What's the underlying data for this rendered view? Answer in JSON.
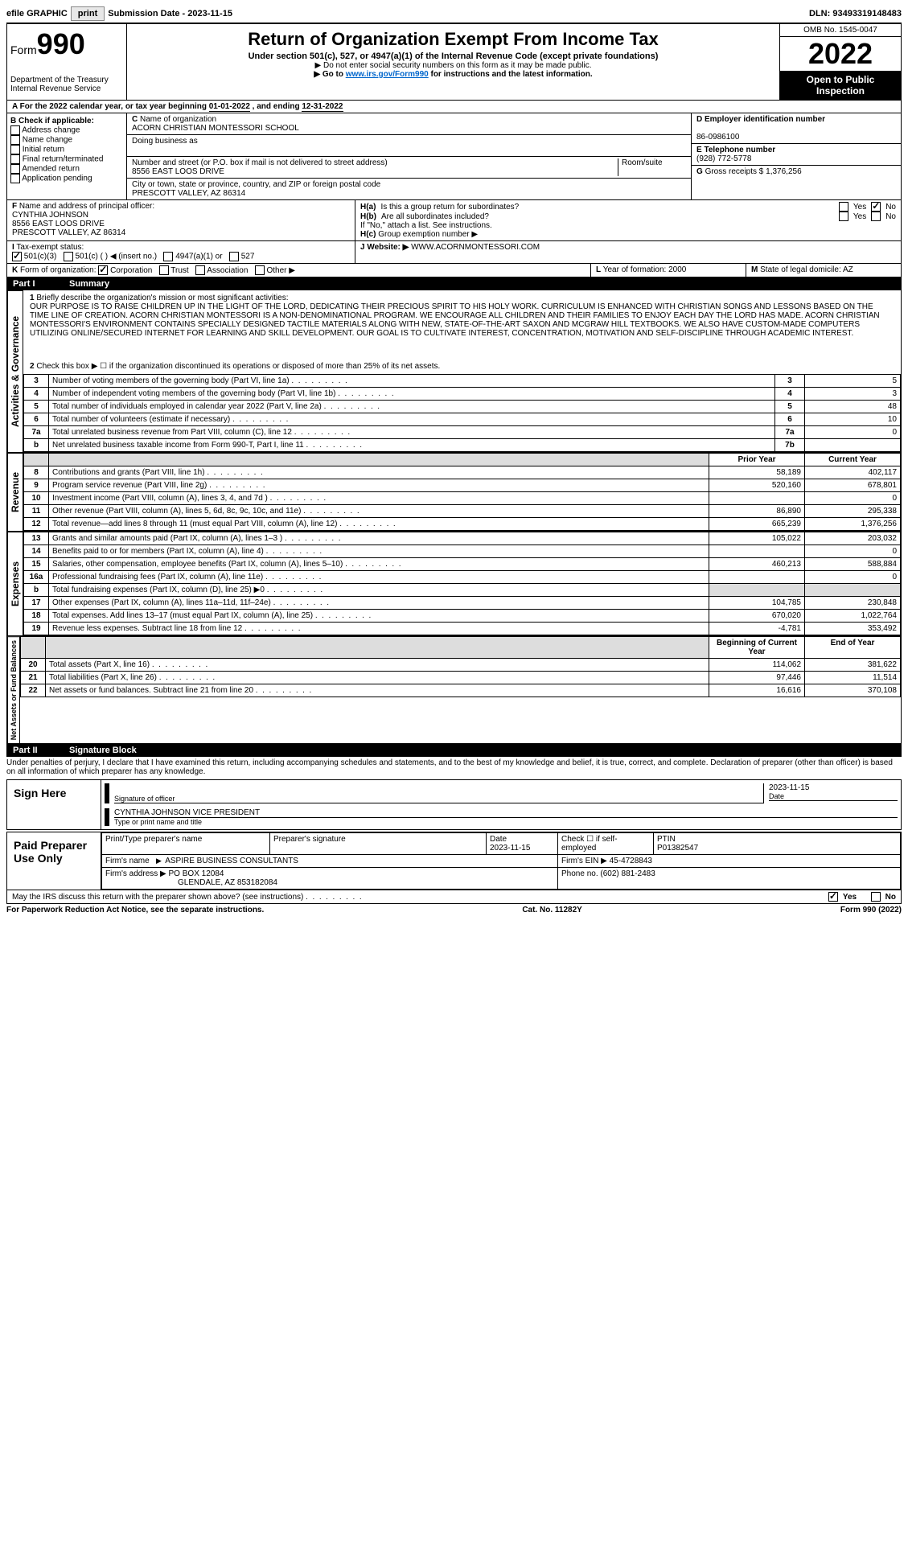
{
  "topbar": {
    "efile": "efile GRAPHIC",
    "print": "print",
    "sub_label": "Submission Date - ",
    "sub_date": "2023-11-15",
    "dln_label": "DLN: ",
    "dln": "93493319148483"
  },
  "header": {
    "form_label": "Form",
    "form_num": "990",
    "dept": "Department of the Treasury\nInternal Revenue Service",
    "title": "Return of Organization Exempt From Income Tax",
    "sub1": "Under section 501(c), 527, or 4947(a)(1) of the Internal Revenue Code (except private foundations)",
    "sub2": "▶ Do not enter social security numbers on this form as it may be made public.",
    "sub3_pre": "▶ Go to ",
    "sub3_link": "www.irs.gov/Form990",
    "sub3_post": " for instructions and the latest information.",
    "omb": "OMB No. 1545-0047",
    "year": "2022",
    "open1": "Open to Public",
    "open2": "Inspection"
  },
  "A": {
    "label": "A",
    "text_pre": "For the 2022 calendar year, or tax year beginning ",
    "begin": "01-01-2022",
    "mid": " , and ending ",
    "end": "12-31-2022"
  },
  "B": {
    "label": "B",
    "heading": "Check if applicable:",
    "opts": [
      "Address change",
      "Name change",
      "Initial return",
      "Final return/terminated",
      "Amended return",
      "Application pending"
    ]
  },
  "C": {
    "label": "C",
    "name_label": "Name of organization",
    "name": "ACORN CHRISTIAN MONTESSORI SCHOOL",
    "dba_label": "Doing business as",
    "dba": "",
    "street_label": "Number and street (or P.O. box if mail is not delivered to street address)",
    "room_label": "Room/suite",
    "street": "8556 EAST LOOS DRIVE",
    "city_label": "City or town, state or province, country, and ZIP or foreign postal code",
    "city": "PRESCOTT VALLEY, AZ  86314"
  },
  "D": {
    "label": "D Employer identification number",
    "val": "86-0986100"
  },
  "E": {
    "label": "E Telephone number",
    "val": "(928) 772-5778"
  },
  "G": {
    "label": "G",
    "text": "Gross receipts $",
    "val": "1,376,256"
  },
  "F": {
    "label": "F",
    "heading": "Name and address of principal officer:",
    "name": "CYNTHIA JOHNSON",
    "addr1": "8556 EAST LOOS DRIVE",
    "addr2": "PRESCOTT VALLEY, AZ  86314"
  },
  "H": {
    "a": "Is this a group return for subordinates?",
    "a_yes": "Yes",
    "a_no": "No",
    "b": "Are all subordinates included?",
    "b_yes": "Yes",
    "b_no": "No",
    "b_note": "If \"No,\" attach a list. See instructions.",
    "c": "Group exemption number ▶"
  },
  "I": {
    "label": "I",
    "heading": "Tax-exempt status:",
    "o1": "501(c)(3)",
    "o2": "501(c) (   ) ◀ (insert no.)",
    "o3": "4947(a)(1) or",
    "o4": "527"
  },
  "J": {
    "label": "J",
    "heading": "Website: ▶",
    "val": "WWW.ACORNMONTESSORI.COM"
  },
  "K": {
    "label": "K",
    "heading": "Form of organization:",
    "opts": [
      "Corporation",
      "Trust",
      "Association",
      "Other ▶"
    ]
  },
  "L": {
    "label": "L",
    "heading": "Year of formation:",
    "val": "2000"
  },
  "M": {
    "label": "M",
    "heading": "State of legal domicile:",
    "val": "AZ"
  },
  "part1": {
    "num": "Part I",
    "title": "Summary"
  },
  "mission": {
    "lineno": "1",
    "heading": "Briefly describe the organization's mission or most significant activities:",
    "text": "OUR PURPOSE IS TO RAISE CHILDREN UP IN THE LIGHT OF THE LORD, DEDICATING THEIR PRECIOUS SPIRIT TO HIS HOLY WORK. CURRICULUM IS ENHANCED WITH CHRISTIAN SONGS AND LESSONS BASED ON THE TIME LINE OF CREATION. ACORN CHRISTIAN MONTESSORI IS A NON-DENOMINATIONAL PROGRAM. WE ENCOURAGE ALL CHILDREN AND THEIR FAMILIES TO ENJOY EACH DAY THE LORD HAS MADE. ACORN CHRISTIAN MONTESSORI'S ENVIRONMENT CONTAINS SPECIALLY DESIGNED TACTILE MATERIALS ALONG WITH NEW, STATE-OF-THE-ART SAXON AND MCGRAW HILL TEXTBOOKS. WE ALSO HAVE CUSTOM-MADE COMPUTERS UTILIZING ONLINE/SECURED INTERNET FOR LEARNING AND SKILL DEVELOPMENT. OUR GOAL IS TO CULTIVATE INTEREST, CONCENTRATION, MOTIVATION AND SELF-DISCIPLINE THROUGH ACADEMIC INTEREST."
  },
  "gov": {
    "label": "Activities & Governance",
    "line2": "Check this box ▶ ☐ if the organization discontinued its operations or disposed of more than 25% of its net assets.",
    "rows": [
      {
        "n": "3",
        "t": "Number of voting members of the governing body (Part VI, line 1a)",
        "c": "3",
        "v": "5"
      },
      {
        "n": "4",
        "t": "Number of independent voting members of the governing body (Part VI, line 1b)",
        "c": "4",
        "v": "3"
      },
      {
        "n": "5",
        "t": "Total number of individuals employed in calendar year 2022 (Part V, line 2a)",
        "c": "5",
        "v": "48"
      },
      {
        "n": "6",
        "t": "Total number of volunteers (estimate if necessary)",
        "c": "6",
        "v": "10"
      },
      {
        "n": "7a",
        "t": "Total unrelated business revenue from Part VIII, column (C), line 12",
        "c": "7a",
        "v": "0"
      },
      {
        "n": "b",
        "t": "Net unrelated business taxable income from Form 990-T, Part I, line 11",
        "c": "7b",
        "v": ""
      }
    ]
  },
  "cols": {
    "prior": "Prior Year",
    "current": "Current Year",
    "begin": "Beginning of Current Year",
    "end": "End of Year"
  },
  "rev": {
    "label": "Revenue",
    "rows": [
      {
        "n": "8",
        "t": "Contributions and grants (Part VIII, line 1h)",
        "p": "58,189",
        "c": "402,117"
      },
      {
        "n": "9",
        "t": "Program service revenue (Part VIII, line 2g)",
        "p": "520,160",
        "c": "678,801"
      },
      {
        "n": "10",
        "t": "Investment income (Part VIII, column (A), lines 3, 4, and 7d )",
        "p": "",
        "c": "0"
      },
      {
        "n": "11",
        "t": "Other revenue (Part VIII, column (A), lines 5, 6d, 8c, 9c, 10c, and 11e)",
        "p": "86,890",
        "c": "295,338"
      },
      {
        "n": "12",
        "t": "Total revenue—add lines 8 through 11 (must equal Part VIII, column (A), line 12)",
        "p": "665,239",
        "c": "1,376,256"
      }
    ]
  },
  "exp": {
    "label": "Expenses",
    "rows": [
      {
        "n": "13",
        "t": "Grants and similar amounts paid (Part IX, column (A), lines 1–3 )",
        "p": "105,022",
        "c": "203,032"
      },
      {
        "n": "14",
        "t": "Benefits paid to or for members (Part IX, column (A), line 4)",
        "p": "",
        "c": "0"
      },
      {
        "n": "15",
        "t": "Salaries, other compensation, employee benefits (Part IX, column (A), lines 5–10)",
        "p": "460,213",
        "c": "588,884"
      },
      {
        "n": "16a",
        "t": "Professional fundraising fees (Part IX, column (A), line 11e)",
        "p": "",
        "c": "0"
      },
      {
        "n": "b",
        "t": "Total fundraising expenses (Part IX, column (D), line 25) ▶0",
        "p": "__shade__",
        "c": "__shade__"
      },
      {
        "n": "17",
        "t": "Other expenses (Part IX, column (A), lines 11a–11d, 11f–24e)",
        "p": "104,785",
        "c": "230,848"
      },
      {
        "n": "18",
        "t": "Total expenses. Add lines 13–17 (must equal Part IX, column (A), line 25)",
        "p": "670,020",
        "c": "1,022,764"
      },
      {
        "n": "19",
        "t": "Revenue less expenses. Subtract line 18 from line 12",
        "p": "-4,781",
        "c": "353,492"
      }
    ]
  },
  "net": {
    "label": "Net Assets or Fund Balances",
    "rows": [
      {
        "n": "20",
        "t": "Total assets (Part X, line 16)",
        "p": "114,062",
        "c": "381,622"
      },
      {
        "n": "21",
        "t": "Total liabilities (Part X, line 26)",
        "p": "97,446",
        "c": "11,514"
      },
      {
        "n": "22",
        "t": "Net assets or fund balances. Subtract line 21 from line 20",
        "p": "16,616",
        "c": "370,108"
      }
    ]
  },
  "part2": {
    "num": "Part II",
    "title": "Signature Block"
  },
  "decl": "Under penalties of perjury, I declare that I have examined this return, including accompanying schedules and statements, and to the best of my knowledge and belief, it is true, correct, and complete. Declaration of preparer (other than officer) is based on all information of which preparer has any knowledge.",
  "sign": {
    "label": "Sign Here",
    "sig_label": "Signature of officer",
    "date": "2023-11-15",
    "date_label": "Date",
    "name": "CYNTHIA JOHNSON  VICE PRESIDENT",
    "name_label": "Type or print name and title"
  },
  "paid": {
    "label": "Paid Preparer Use Only",
    "h1": "Print/Type preparer's name",
    "h2": "Preparer's signature",
    "h3": "Date",
    "h4": "Check ☐ if self-employed",
    "h5": "PTIN",
    "date": "2023-11-15",
    "ptin": "P01382547",
    "firm_label": "Firm's name",
    "firm": "ASPIRE BUSINESS CONSULTANTS",
    "ein_label": "Firm's EIN ▶",
    "ein": "45-4728843",
    "addr_label": "Firm's address ▶",
    "addr1": "PO BOX 12084",
    "addr2": "GLENDALE, AZ  853182084",
    "phone_label": "Phone no.",
    "phone": "(602) 881-2483"
  },
  "discuss": {
    "text": "May the IRS discuss this return with the preparer shown above? (see instructions)",
    "yes": "Yes",
    "no": "No"
  },
  "footer": {
    "l": "For Paperwork Reduction Act Notice, see the separate instructions.",
    "m": "Cat. No. 11282Y",
    "r": "Form 990 (2022)"
  }
}
